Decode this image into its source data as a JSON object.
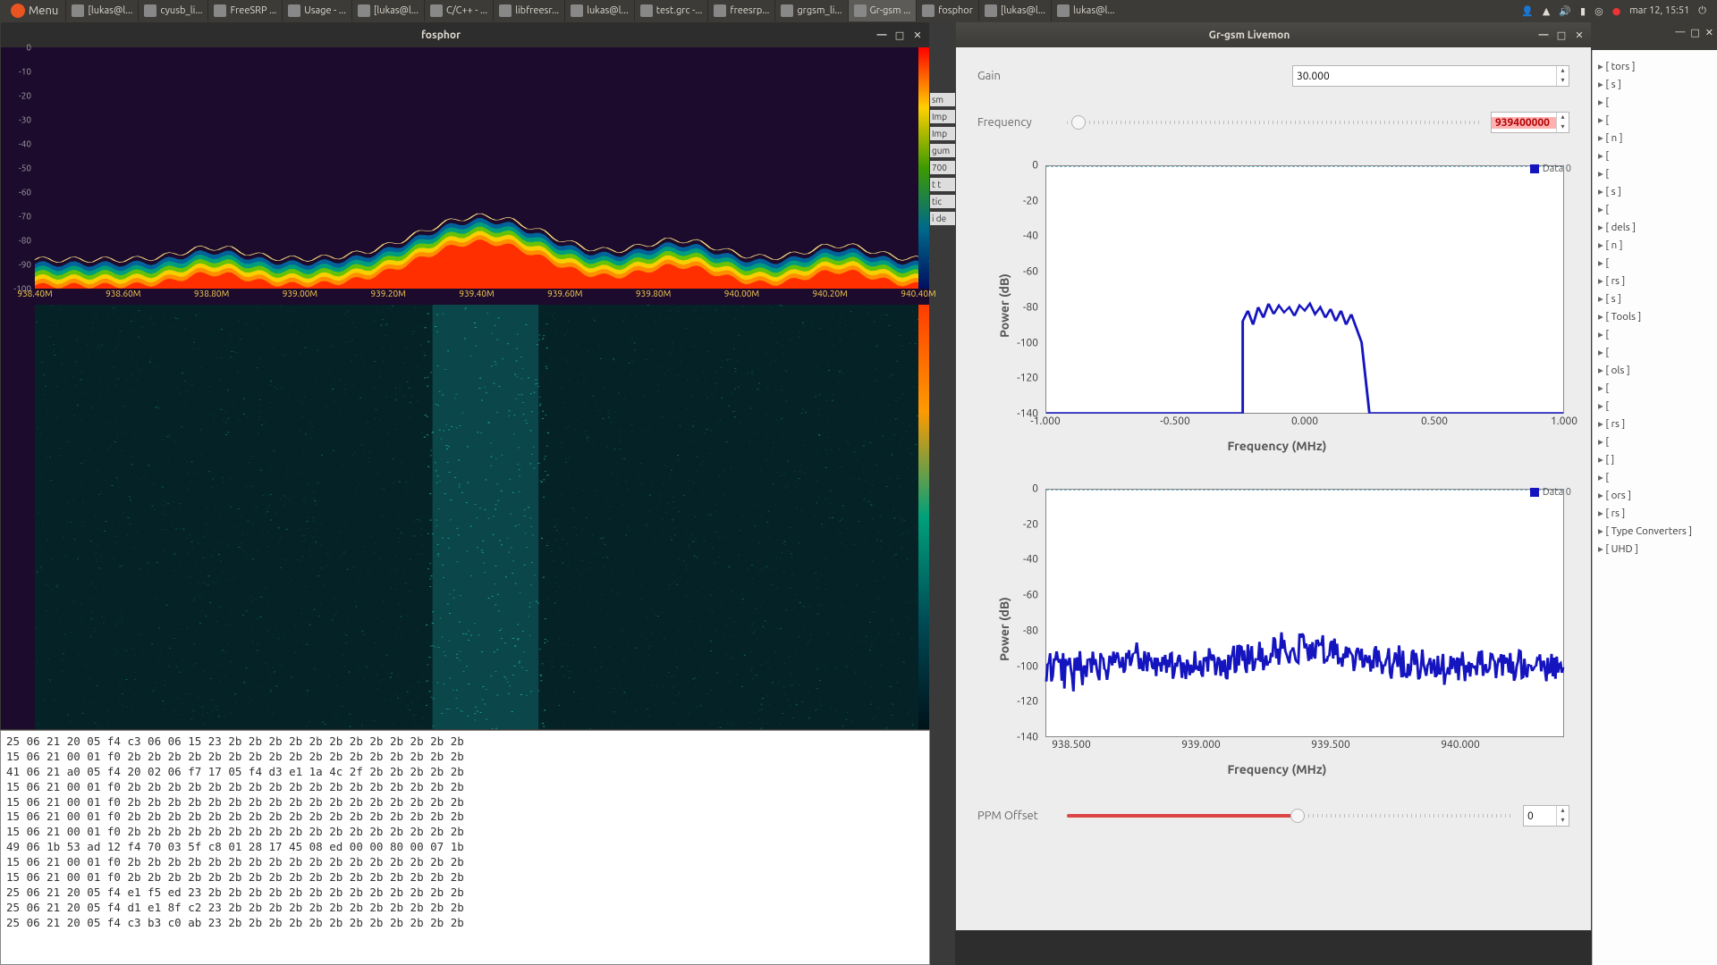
{
  "panel": {
    "menu_label": "Menu",
    "clock": "mar 12, 15:51",
    "taskbar": [
      {
        "label": "[lukas@l..."
      },
      {
        "label": "cyusb_li..."
      },
      {
        "label": "FreeSRP ..."
      },
      {
        "label": "Usage - ..."
      },
      {
        "label": "[lukas@l..."
      },
      {
        "label": "C/C++ - ..."
      },
      {
        "label": "libfreesr..."
      },
      {
        "label": "lukas@l..."
      },
      {
        "label": "test.grc -..."
      },
      {
        "label": "freesrp..."
      },
      {
        "label": "grgsm_li..."
      },
      {
        "label": "Gr-gsm ...",
        "active": true
      },
      {
        "label": "fosphor"
      },
      {
        "label": "[lukas@l..."
      },
      {
        "label": "lukas@l..."
      }
    ]
  },
  "fosphor": {
    "title": "fosphor",
    "y_ticks": [
      0,
      -10,
      -20,
      -30,
      -40,
      -50,
      -60,
      -70,
      -80,
      -90,
      -100
    ],
    "y_min": -100,
    "y_max": 0,
    "freq_labels": [
      "938.40M",
      "938.60M",
      "938.80M",
      "939.00M",
      "939.20M",
      "939.40M",
      "939.60M",
      "939.80M",
      "940.00M",
      "940.20M",
      "940.40M"
    ],
    "noise_floor_db": -88,
    "spectrum_bg": "#1d0b2e",
    "waterfall_bg": "#06262a",
    "palette": [
      "#ff2a00",
      "#ff8a00",
      "#ffd000",
      "#6cc400",
      "#00a07b",
      "#0068a0",
      "#1d0b2e"
    ]
  },
  "hex": {
    "rows": [
      "25 06 21 20 05 f4 c3 06 06 15 23 2b 2b 2b 2b 2b 2b 2b 2b 2b 2b 2b 2b",
      "15 06 21 00 01 f0 2b 2b 2b 2b 2b 2b 2b 2b 2b 2b 2b 2b 2b 2b 2b 2b 2b",
      "41 06 21 a0 05 f4 20 02 06 f7 17 05 f4 d3 e1 1a 4c 2f 2b 2b 2b 2b 2b",
      "15 06 21 00 01 f0 2b 2b 2b 2b 2b 2b 2b 2b 2b 2b 2b 2b 2b 2b 2b 2b 2b",
      "15 06 21 00 01 f0 2b 2b 2b 2b 2b 2b 2b 2b 2b 2b 2b 2b 2b 2b 2b 2b 2b",
      "15 06 21 00 01 f0 2b 2b 2b 2b 2b 2b 2b 2b 2b 2b 2b 2b 2b 2b 2b 2b 2b",
      "15 06 21 00 01 f0 2b 2b 2b 2b 2b 2b 2b 2b 2b 2b 2b 2b 2b 2b 2b 2b 2b",
      "49 06 1b 53 ad 12 f4 70 03 5f c8 01 28 17 45 08 ed 00 00 80 00 07 1b",
      "15 06 21 00 01 f0 2b 2b 2b 2b 2b 2b 2b 2b 2b 2b 2b 2b 2b 2b 2b 2b 2b",
      "15 06 21 00 01 f0 2b 2b 2b 2b 2b 2b 2b 2b 2b 2b 2b 2b 2b 2b 2b 2b 2b",
      "25 06 21 20 05 f4 e1 f5 ed 23 2b 2b 2b 2b 2b 2b 2b 2b 2b 2b 2b 2b 2b",
      "25 06 21 20 05 f4 d1 e1 8f c2 23 2b 2b 2b 2b 2b 2b 2b 2b 2b 2b 2b 2b",
      "25 06 21 20 05 f4 c3 b3 c0 ab 23 2b 2b 2b 2b 2b 2b 2b 2b 2b 2b 2b 2b"
    ]
  },
  "livemon": {
    "title": "Gr-gsm Livemon",
    "gain": {
      "label": "Gain",
      "value": "30.000"
    },
    "frequency": {
      "label": "Frequency",
      "value": "939400000",
      "slider_pos_pct": 1
    },
    "ppm": {
      "label": "PPM Offset",
      "value": "0",
      "slider_pos_pct": 50
    },
    "legend_label": "Data 0",
    "series_color": "#1515c0",
    "grid_dash_color": "#7db8cc",
    "plot_bg": "#ffffff",
    "plot1": {
      "ylabel": "Power (dB)",
      "xlabel": "Frequency (MHz)",
      "y_ticks": [
        0,
        -20,
        -40,
        -60,
        -80,
        -100,
        -120,
        -140
      ],
      "y_min": -140,
      "y_max": 0,
      "x_ticks": [
        -1.0,
        -0.5,
        0.0,
        0.5,
        1.0
      ],
      "x_min": -1.0,
      "x_max": 1.0,
      "trace": [
        [
          -1.0,
          -140
        ],
        [
          -0.24,
          -140
        ],
        [
          -0.24,
          -88
        ],
        [
          -0.22,
          -82
        ],
        [
          -0.2,
          -90
        ],
        [
          -0.18,
          -80
        ],
        [
          -0.16,
          -86
        ],
        [
          -0.14,
          -78
        ],
        [
          -0.12,
          -84
        ],
        [
          -0.1,
          -79
        ],
        [
          -0.08,
          -83
        ],
        [
          -0.06,
          -80
        ],
        [
          -0.04,
          -85
        ],
        [
          -0.02,
          -79
        ],
        [
          0.0,
          -82
        ],
        [
          0.02,
          -78
        ],
        [
          0.04,
          -84
        ],
        [
          0.06,
          -80
        ],
        [
          0.08,
          -86
        ],
        [
          0.1,
          -81
        ],
        [
          0.12,
          -88
        ],
        [
          0.14,
          -82
        ],
        [
          0.16,
          -90
        ],
        [
          0.18,
          -84
        ],
        [
          0.2,
          -92
        ],
        [
          0.22,
          -100
        ],
        [
          0.25,
          -140
        ],
        [
          1.0,
          -140
        ]
      ]
    },
    "plot2": {
      "ylabel": "Power (dB)",
      "xlabel": "Frequency (MHz)",
      "y_ticks": [
        0,
        -20,
        -40,
        -60,
        -80,
        -100,
        -120,
        -140
      ],
      "y_min": -140,
      "y_max": 0,
      "x_ticks": [
        938.5,
        939.0,
        939.5,
        940.0
      ],
      "x_min": 938.4,
      "x_max": 940.4
    }
  },
  "right_tree": {
    "items": [
      "tors ]",
      "s ]",
      "",
      "",
      "n ]",
      "",
      "",
      "s ]",
      "",
      "dels ]",
      "n ]",
      "",
      "rs ]",
      "s ]",
      "Tools ]",
      "",
      "",
      "ols ]",
      "",
      "",
      "rs ]",
      "",
      "]",
      "",
      "ors ]",
      "rs ]",
      "Type Converters ]",
      "UHD ]"
    ]
  },
  "bg_strip": {
    "lines": [
      "sm",
      "Imp",
      "Imp",
      "gum",
      "700",
      "t t",
      "tic",
      "i de"
    ]
  },
  "right_win_title": ""
}
